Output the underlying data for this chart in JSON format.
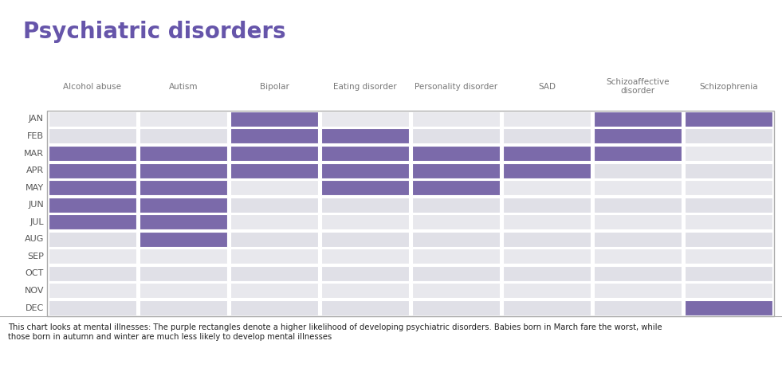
{
  "title": "Psychiatric disorders",
  "title_color": "#6655aa",
  "columns": [
    "Alcohol abuse",
    "Autism",
    "Bipolar",
    "Eating disorder",
    "Personality disorder",
    "SAD",
    "Schizoaffective\ndisorder",
    "Schizophrenia"
  ],
  "months": [
    "JAN",
    "FEB",
    "MAR",
    "APR",
    "MAY",
    "JUN",
    "JUL",
    "AUG",
    "SEP",
    "OCT",
    "NOV",
    "DEC"
  ],
  "highlighted_color": "#7b6aaa",
  "cell_bg_even": "#e8e8ed",
  "cell_bg_odd": "#e0e0e7",
  "caption": "This chart looks at mental illnesses: The purple rectangles denote a higher likelihood of developing psychiatric disorders. Babies born in March fare the worst, while\nthose born in autumn and winter are much less likely to develop mental illnesses",
  "highlights": {
    "JAN": [
      2,
      6,
      7
    ],
    "FEB": [
      2,
      3,
      6
    ],
    "MAR": [
      0,
      1,
      2,
      3,
      4,
      5,
      6
    ],
    "APR": [
      0,
      1,
      2,
      3,
      4,
      5
    ],
    "MAY": [
      0,
      1,
      3,
      4
    ],
    "JUN": [
      0,
      1
    ],
    "JUL": [
      0,
      1
    ],
    "AUG": [
      1
    ],
    "SEP": [],
    "OCT": [],
    "NOV": [],
    "DEC": [
      7
    ]
  }
}
